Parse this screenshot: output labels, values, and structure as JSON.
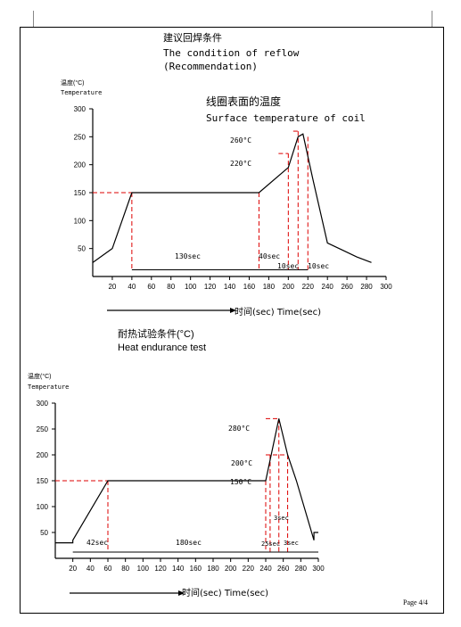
{
  "header": {
    "cn_title": "建议回焊条件",
    "en_title": "The condition of reflow",
    "en_sub": "(Recommendation)"
  },
  "chart1": {
    "ylabel_cn": "温度(°C)",
    "ylabel_en": "Temperature",
    "title_cn": "线圈表面的温度",
    "title_en": "Surface temperature of coil",
    "peak_label": "260°C",
    "mid_label": "220°C",
    "dur_130": "130sec",
    "dur_40": "40sec",
    "dur_10a": "10sec",
    "dur_10b": "10sec",
    "arrow_label": "时间(sec) Time(sec)"
  },
  "section2": {
    "cn_title": "耐热试验条件(°C)",
    "en_title": "Heat endurance test"
  },
  "chart2": {
    "ylabel_cn": "温度(°C)",
    "ylabel_en": "Temperature",
    "peak_label": "280°C",
    "mid_label": "200°C",
    "low_label": "150°C",
    "dur_3a": "3sec",
    "dur_42": "42sec",
    "dur_180": "180sec",
    "dur_25": "25sec",
    "dur_3b": "3sec",
    "arrow_label": "时间(sec) Time(sec)"
  },
  "footer": {
    "page": "Page 4/4"
  },
  "chart_data": [
    {
      "type": "line",
      "title": "Surface temperature of coil",
      "xlabel": "时间(sec) Time(sec)",
      "ylabel": "Temperature",
      "xlim": [
        0,
        300
      ],
      "ylim": [
        0,
        300
      ],
      "x_ticks": [
        20,
        40,
        60,
        80,
        100,
        120,
        140,
        160,
        180,
        200,
        220,
        240,
        260,
        280,
        300
      ],
      "y_ticks": [
        50,
        100,
        150,
        200,
        250,
        300
      ],
      "series": [
        {
          "x": [
            0,
            20,
            40,
            170,
            200,
            210,
            215,
            225,
            240,
            270,
            285
          ],
          "y": [
            25,
            50,
            150,
            150,
            195,
            250,
            255,
            175,
            60,
            35,
            25
          ]
        }
      ]
    },
    {
      "type": "line",
      "title": "Heat endurance test",
      "xlabel": "时间(sec) Time(sec)",
      "ylabel": "Temperature",
      "xlim": [
        0,
        300
      ],
      "ylim": [
        0,
        300
      ],
      "x_ticks": [
        20,
        40,
        60,
        80,
        100,
        120,
        140,
        160,
        180,
        200,
        220,
        240,
        260,
        280,
        300
      ],
      "y_ticks": [
        50,
        100,
        150,
        200,
        250,
        300
      ],
      "series": [
        {
          "x": [
            0,
            20,
            20,
            60,
            240,
            255,
            265,
            275,
            295,
            295,
            300
          ],
          "y": [
            30,
            30,
            35,
            150,
            150,
            270,
            200,
            150,
            35,
            50,
            50
          ]
        }
      ]
    }
  ]
}
